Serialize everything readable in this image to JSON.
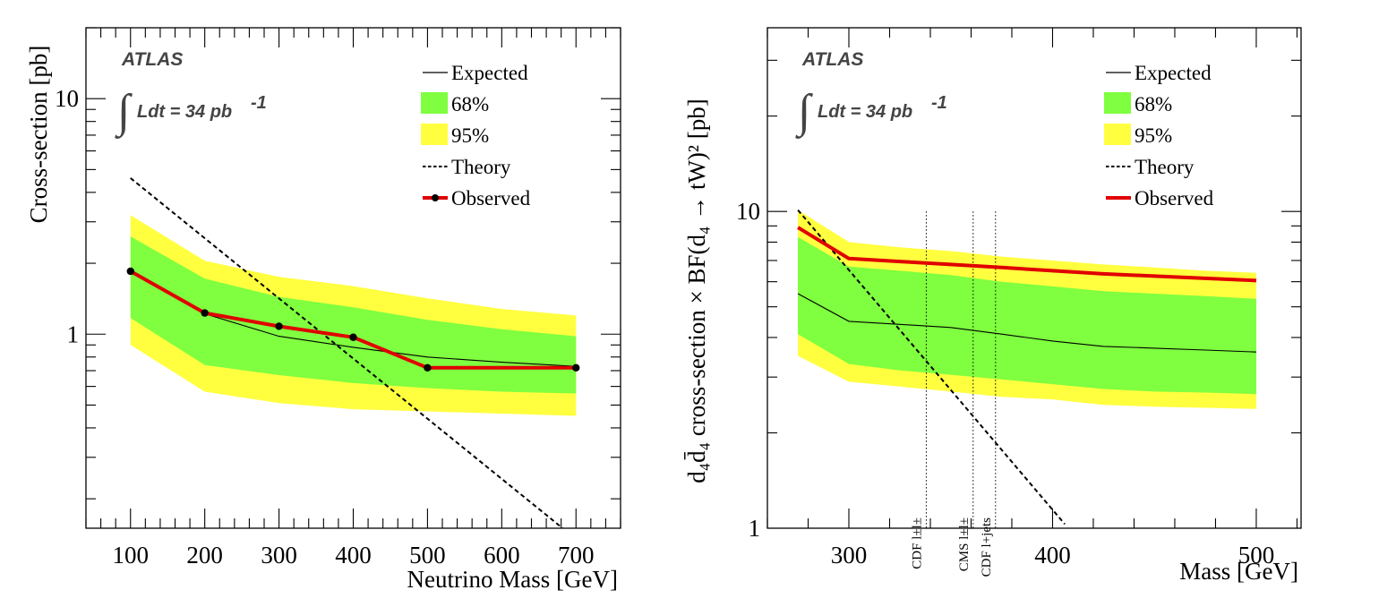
{
  "chart_data": [
    {
      "type": "line",
      "name": "left",
      "atlas_label": "ATLAS",
      "lumi_integral": "∫",
      "lumi_label": "Ldt = 34 pb",
      "lumi_sup": "-1",
      "xlabel": "Neutrino Mass [GeV]",
      "ylabel": "Cross-section [pb]",
      "xlim": [
        40,
        760
      ],
      "ylim": [
        0.15,
        20
      ],
      "yscale": "log",
      "x_ticks": [
        100,
        200,
        300,
        400,
        500,
        600,
        700
      ],
      "x_tick_labels": [
        "100",
        "200",
        "300",
        "400",
        "500",
        "600",
        "700"
      ],
      "y_tick_labels": [
        {
          "value": 1,
          "label": "1"
        },
        {
          "value": 10,
          "label": "10"
        }
      ],
      "x": [
        100,
        200,
        300,
        400,
        500,
        600,
        700
      ],
      "expected": [
        1.85,
        1.22,
        0.98,
        0.88,
        0.8,
        0.76,
        0.73
      ],
      "band68_low": [
        1.17,
        0.74,
        0.67,
        0.62,
        0.59,
        0.57,
        0.56
      ],
      "band68_high": [
        2.6,
        1.72,
        1.44,
        1.3,
        1.15,
        1.05,
        0.98
      ],
      "band95_low": [
        0.9,
        0.57,
        0.51,
        0.48,
        0.47,
        0.46,
        0.45
      ],
      "band95_high": [
        3.2,
        2.05,
        1.75,
        1.6,
        1.42,
        1.28,
        1.2
      ],
      "theory_x": [
        100,
        682
      ],
      "theory_y": [
        4.6,
        0.15
      ],
      "observed_x": [
        100,
        200,
        300,
        400,
        500,
        700
      ],
      "observed": [
        1.85,
        1.23,
        1.08,
        0.97,
        0.72,
        0.72
      ],
      "legend": [
        "Expected",
        "68%",
        "95%",
        "Theory",
        "Observed"
      ],
      "observed_markers": true
    },
    {
      "type": "line",
      "name": "right",
      "atlas_label": "ATLAS",
      "lumi_integral": "∫",
      "lumi_label": "Ldt = 34 pb",
      "lumi_sup": "-1",
      "xlabel": "Mass [GeV]",
      "ylabel": "d₄d̄₄ cross-section × BF(d₄ → tW)² [pb]",
      "xlim": [
        260,
        522
      ],
      "ylim": [
        1,
        38
      ],
      "yscale": "log",
      "x_ticks": [
        300,
        400,
        500
      ],
      "x_tick_labels": [
        "300",
        "400",
        "500"
      ],
      "y_tick_labels": [
        {
          "value": 1,
          "label": "1"
        },
        {
          "value": 10,
          "label": "10"
        }
      ],
      "x": [
        275,
        300,
        325,
        350,
        375,
        400,
        425,
        450,
        475,
        500
      ],
      "expected": [
        5.5,
        4.5,
        4.4,
        4.3,
        4.1,
        3.9,
        3.75,
        3.7,
        3.65,
        3.6
      ],
      "band68_low": [
        4.1,
        3.3,
        3.15,
        3.05,
        2.95,
        2.85,
        2.75,
        2.7,
        2.68,
        2.65
      ],
      "band68_high": [
        8.3,
        6.7,
        6.5,
        6.3,
        6.0,
        5.8,
        5.6,
        5.5,
        5.4,
        5.3
      ],
      "band95_low": [
        3.5,
        2.9,
        2.8,
        2.7,
        2.6,
        2.55,
        2.45,
        2.42,
        2.4,
        2.38
      ],
      "band95_high": [
        10.1,
        8.0,
        7.7,
        7.5,
        7.2,
        7.0,
        6.8,
        6.65,
        6.5,
        6.4
      ],
      "theory_x": [
        275,
        406
      ],
      "theory_y": [
        10.1,
        1.03
      ],
      "observed_x": [
        275,
        300,
        325,
        350,
        375,
        400,
        425,
        450,
        475,
        500
      ],
      "observed": [
        8.9,
        7.1,
        6.95,
        6.8,
        6.65,
        6.5,
        6.35,
        6.25,
        6.15,
        6.05
      ],
      "legend": [
        "Expected",
        "68%",
        "95%",
        "Theory",
        "Observed"
      ],
      "observed_markers": false,
      "vlines": [
        {
          "x": 338,
          "label": "CDF l±l±"
        },
        {
          "x": 361,
          "label": "CMS l±l±"
        },
        {
          "x": 372,
          "label": "CDF l+jets"
        }
      ]
    }
  ],
  "colors": {
    "band68": "#7fff3f",
    "band95": "#ffff3f",
    "observed": "#e00000",
    "expected": "#000000",
    "theory": "#000000"
  }
}
